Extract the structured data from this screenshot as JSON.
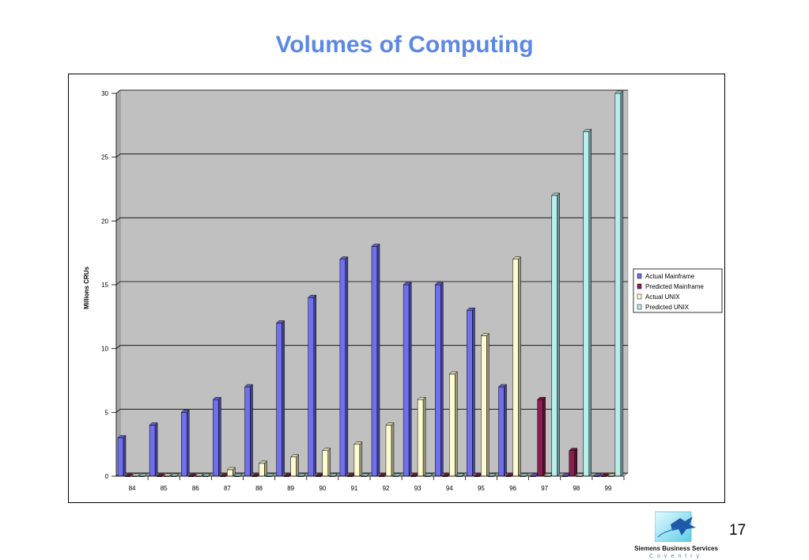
{
  "title": "Volumes of Computing",
  "page_number": "17",
  "logo": {
    "company": "Siemens Business Services",
    "city": "Coventry",
    "icon": "siemens-logo-icon"
  },
  "colors": {
    "title": "#5b87e6",
    "actual_mainframe": "#6f6ff0",
    "predicted_mainframe": "#8a1f4f",
    "actual_unix": "#fffbd0",
    "predicted_unix": "#b7eeee",
    "plot_background": "#c0c0c0"
  },
  "chart_data": {
    "type": "bar",
    "title": "",
    "xlabel": "",
    "ylabel": "Millions CRUs",
    "ylim": [
      0,
      30
    ],
    "yticks": [
      0,
      5,
      10,
      15,
      20,
      25,
      30
    ],
    "categories": [
      "84",
      "85",
      "86",
      "87",
      "88",
      "89",
      "90",
      "91",
      "92",
      "93",
      "94",
      "95",
      "96",
      "97",
      "98",
      "99"
    ],
    "grid": true,
    "legend_position": "right",
    "series": [
      {
        "name": "Actual Mainframe",
        "values": [
          3,
          4,
          5,
          6,
          7,
          12,
          14,
          17,
          18,
          15,
          15,
          13,
          7,
          0,
          0,
          0
        ]
      },
      {
        "name": "Predicted Mainframe",
        "values": [
          0,
          0,
          0,
          0,
          0,
          0,
          0,
          0,
          0,
          0,
          0,
          0,
          0,
          6,
          2,
          0
        ]
      },
      {
        "name": "Actual UNIX",
        "values": [
          0,
          0,
          0,
          0.5,
          1,
          1.5,
          2,
          2.5,
          4,
          6,
          8,
          11,
          17,
          0,
          0,
          0
        ]
      },
      {
        "name": "Predicted UNIX",
        "values": [
          0,
          0,
          0,
          0,
          0,
          0,
          0,
          0,
          0,
          0,
          0,
          0,
          0,
          22,
          27,
          30
        ]
      }
    ]
  }
}
